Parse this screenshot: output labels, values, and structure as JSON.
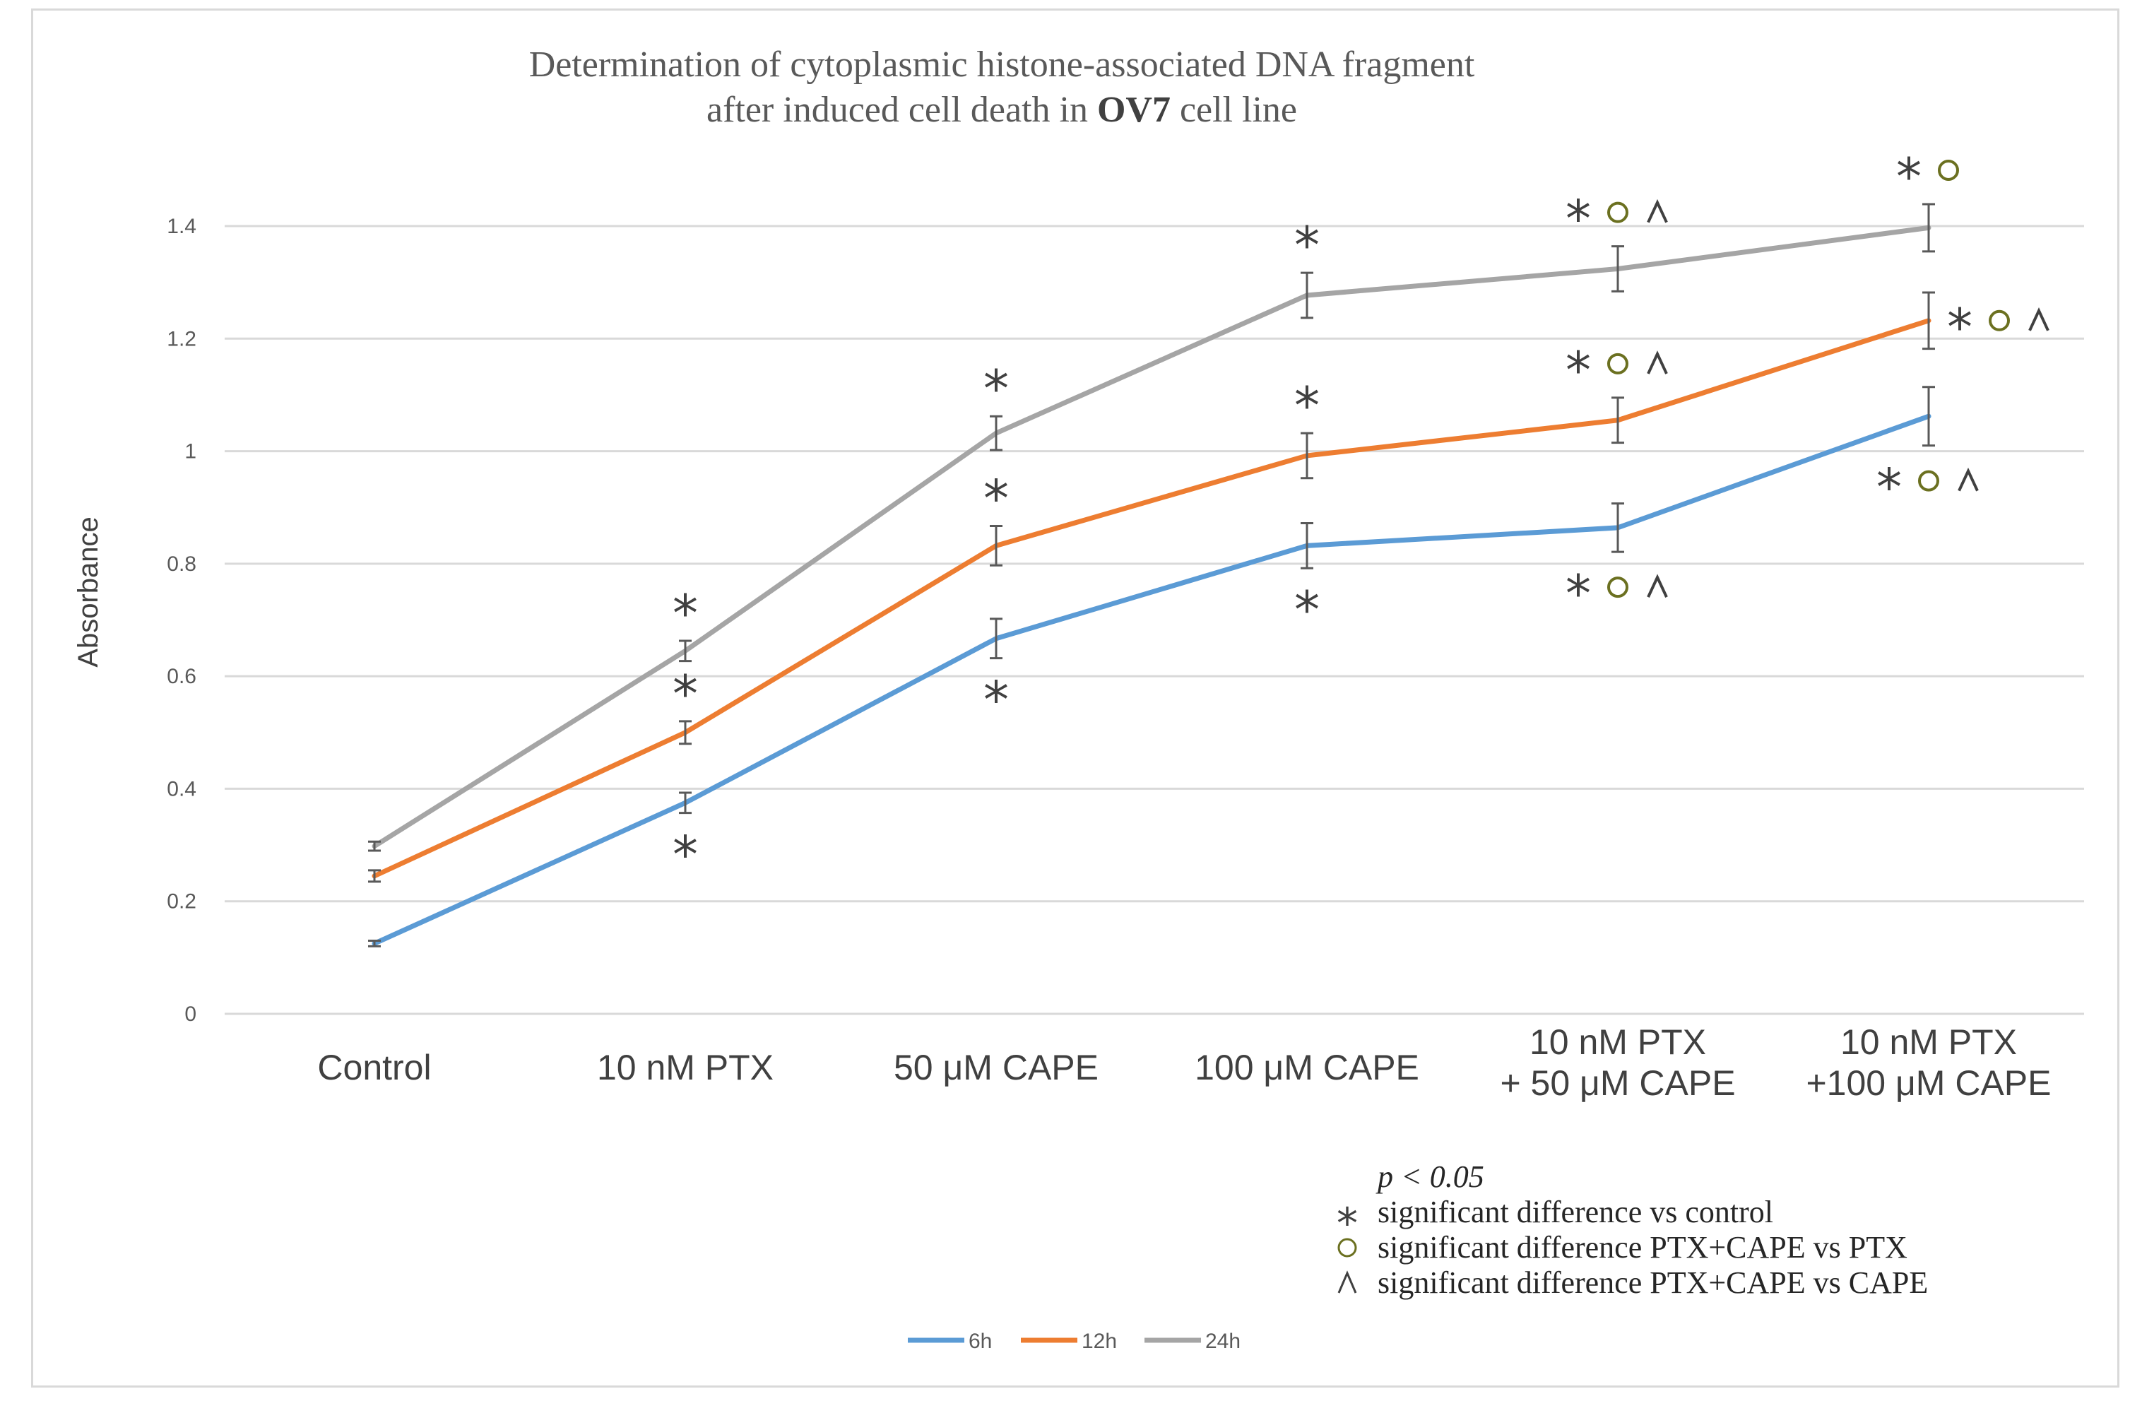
{
  "chart_data": {
    "type": "line",
    "title_line1": "Determination of cytoplasmic histone-associated DNA fragment",
    "title_line2_prefix": "after induced cell death in ",
    "title_line2_bold": "OV7",
    "title_line2_suffix": " cell line",
    "xlabel": "",
    "ylabel": "Absorbance",
    "ylim": [
      0,
      1.4
    ],
    "yticks": [
      "0",
      "0.2",
      "0.4",
      "0.6",
      "0.8",
      "1",
      "1.2",
      "1.4"
    ],
    "grid": true,
    "categories": [
      [
        "Control"
      ],
      [
        "10 nM  PTX"
      ],
      [
        "50 μM  CAPE"
      ],
      [
        "100 μM  CAPE"
      ],
      [
        "10 nM  PTX",
        "+ 50 μM  CAPE"
      ],
      [
        "10 nM  PTX",
        "+100 μM  CAPE"
      ]
    ],
    "series": [
      {
        "name": "6h",
        "color": "#5b9bd5",
        "values": [
          0.125,
          0.375,
          0.667,
          0.832,
          0.864,
          1.062
        ],
        "errors": [
          0.005,
          0.018,
          0.035,
          0.04,
          0.043,
          0.052
        ],
        "annotations": [
          {
            "text": "",
            "pos": "below"
          },
          {
            "text": "*",
            "pos": "below"
          },
          {
            "text": "*",
            "pos": "below"
          },
          {
            "text": "*",
            "pos": "below"
          },
          {
            "text": "* ○ ^",
            "pos": "below"
          },
          {
            "text": "* ○ ^",
            "pos": "below"
          }
        ]
      },
      {
        "name": "12h",
        "color": "#ed7d31",
        "values": [
          0.245,
          0.5,
          0.832,
          0.992,
          1.055,
          1.232
        ],
        "errors": [
          0.01,
          0.02,
          0.035,
          0.04,
          0.04,
          0.05
        ],
        "annotations": [
          {
            "text": "",
            "pos": "above"
          },
          {
            "text": "*",
            "pos": "above"
          },
          {
            "text": "*",
            "pos": "above"
          },
          {
            "text": "*",
            "pos": "above"
          },
          {
            "text": "* ○ ^",
            "pos": "above"
          },
          {
            "text": "* ○ ^",
            "pos": "right"
          }
        ]
      },
      {
        "name": "24h",
        "color": "#a5a5a5",
        "values": [
          0.298,
          0.645,
          1.032,
          1.277,
          1.324,
          1.397
        ],
        "errors": [
          0.008,
          0.018,
          0.03,
          0.04,
          0.04,
          0.042
        ],
        "annotations": [
          {
            "text": "",
            "pos": "above"
          },
          {
            "text": "*",
            "pos": "above"
          },
          {
            "text": "*",
            "pos": "above"
          },
          {
            "text": "*",
            "pos": "above"
          },
          {
            "text": "* ○ ^",
            "pos": "above"
          },
          {
            "text": "* ○",
            "pos": "above"
          }
        ]
      }
    ],
    "legend": [
      "6h",
      "12h",
      "24h"
    ],
    "legend_position": "bottom-center",
    "significance_note": {
      "p_value": "p < 0.05",
      "items": [
        {
          "symbol": "*",
          "text": "significant difference vs control"
        },
        {
          "symbol": "○",
          "text": "significant difference PTX+CAPE vs PTX"
        },
        {
          "symbol": "^",
          "text": "significant difference PTX+CAPE vs CAPE"
        }
      ]
    },
    "colors": {
      "grid": "#d9d9d9",
      "error_bar": "#595959",
      "circle_marker": "#6b7020"
    }
  }
}
